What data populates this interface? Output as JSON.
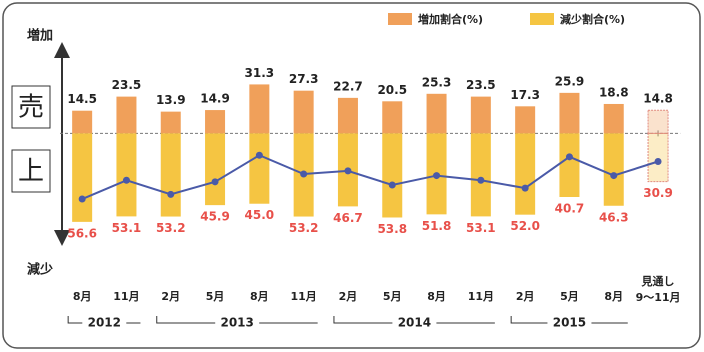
{
  "chart_data": {
    "type": "diverging-bar",
    "categories": [
      "8月",
      "11月",
      "2月",
      "5月",
      "8月",
      "11月",
      "2月",
      "5月",
      "8月",
      "11月",
      "2月",
      "5月",
      "8月",
      "9～11月"
    ],
    "years": [
      "2012",
      "2013",
      "2014",
      "2015"
    ],
    "series": [
      {
        "name": "増加割合(%)",
        "color": "#f0a05a",
        "direction": "up",
        "label_color": "#222",
        "values": [
          14.5,
          23.5,
          13.9,
          14.9,
          31.3,
          27.3,
          22.7,
          20.5,
          25.3,
          23.5,
          17.3,
          25.9,
          18.8,
          14.8
        ]
      },
      {
        "name": "減少割合(%)",
        "color": "#f5c542",
        "direction": "down",
        "label_color": "#e8504a",
        "values": [
          56.6,
          53.1,
          53.2,
          45.9,
          45.0,
          53.2,
          46.7,
          53.8,
          51.8,
          53.1,
          52.0,
          40.7,
          46.3,
          30.9
        ],
        "value_labels": [
          "56.6",
          "53.1",
          "53.2",
          "45.9",
          "45.0",
          "53.2",
          "46.7",
          "53.8",
          "51.8",
          "53.1",
          "52.0",
          "40.7",
          "46.3",
          "30.9"
        ]
      }
    ],
    "line": {
      "color": "#4a5aa8",
      "values": [
        -42,
        -30,
        -39,
        -31,
        -14,
        -26,
        -24,
        -33,
        -27,
        -30,
        -35,
        -15,
        -27,
        -18
      ]
    },
    "ylim": [
      -65,
      45
    ],
    "y_top_label": "増加",
    "y_bottom_label": "減少",
    "y_title": [
      "売",
      "上"
    ],
    "annotations": [
      {
        "text": "見通し",
        "category": "9～11月"
      }
    ]
  }
}
